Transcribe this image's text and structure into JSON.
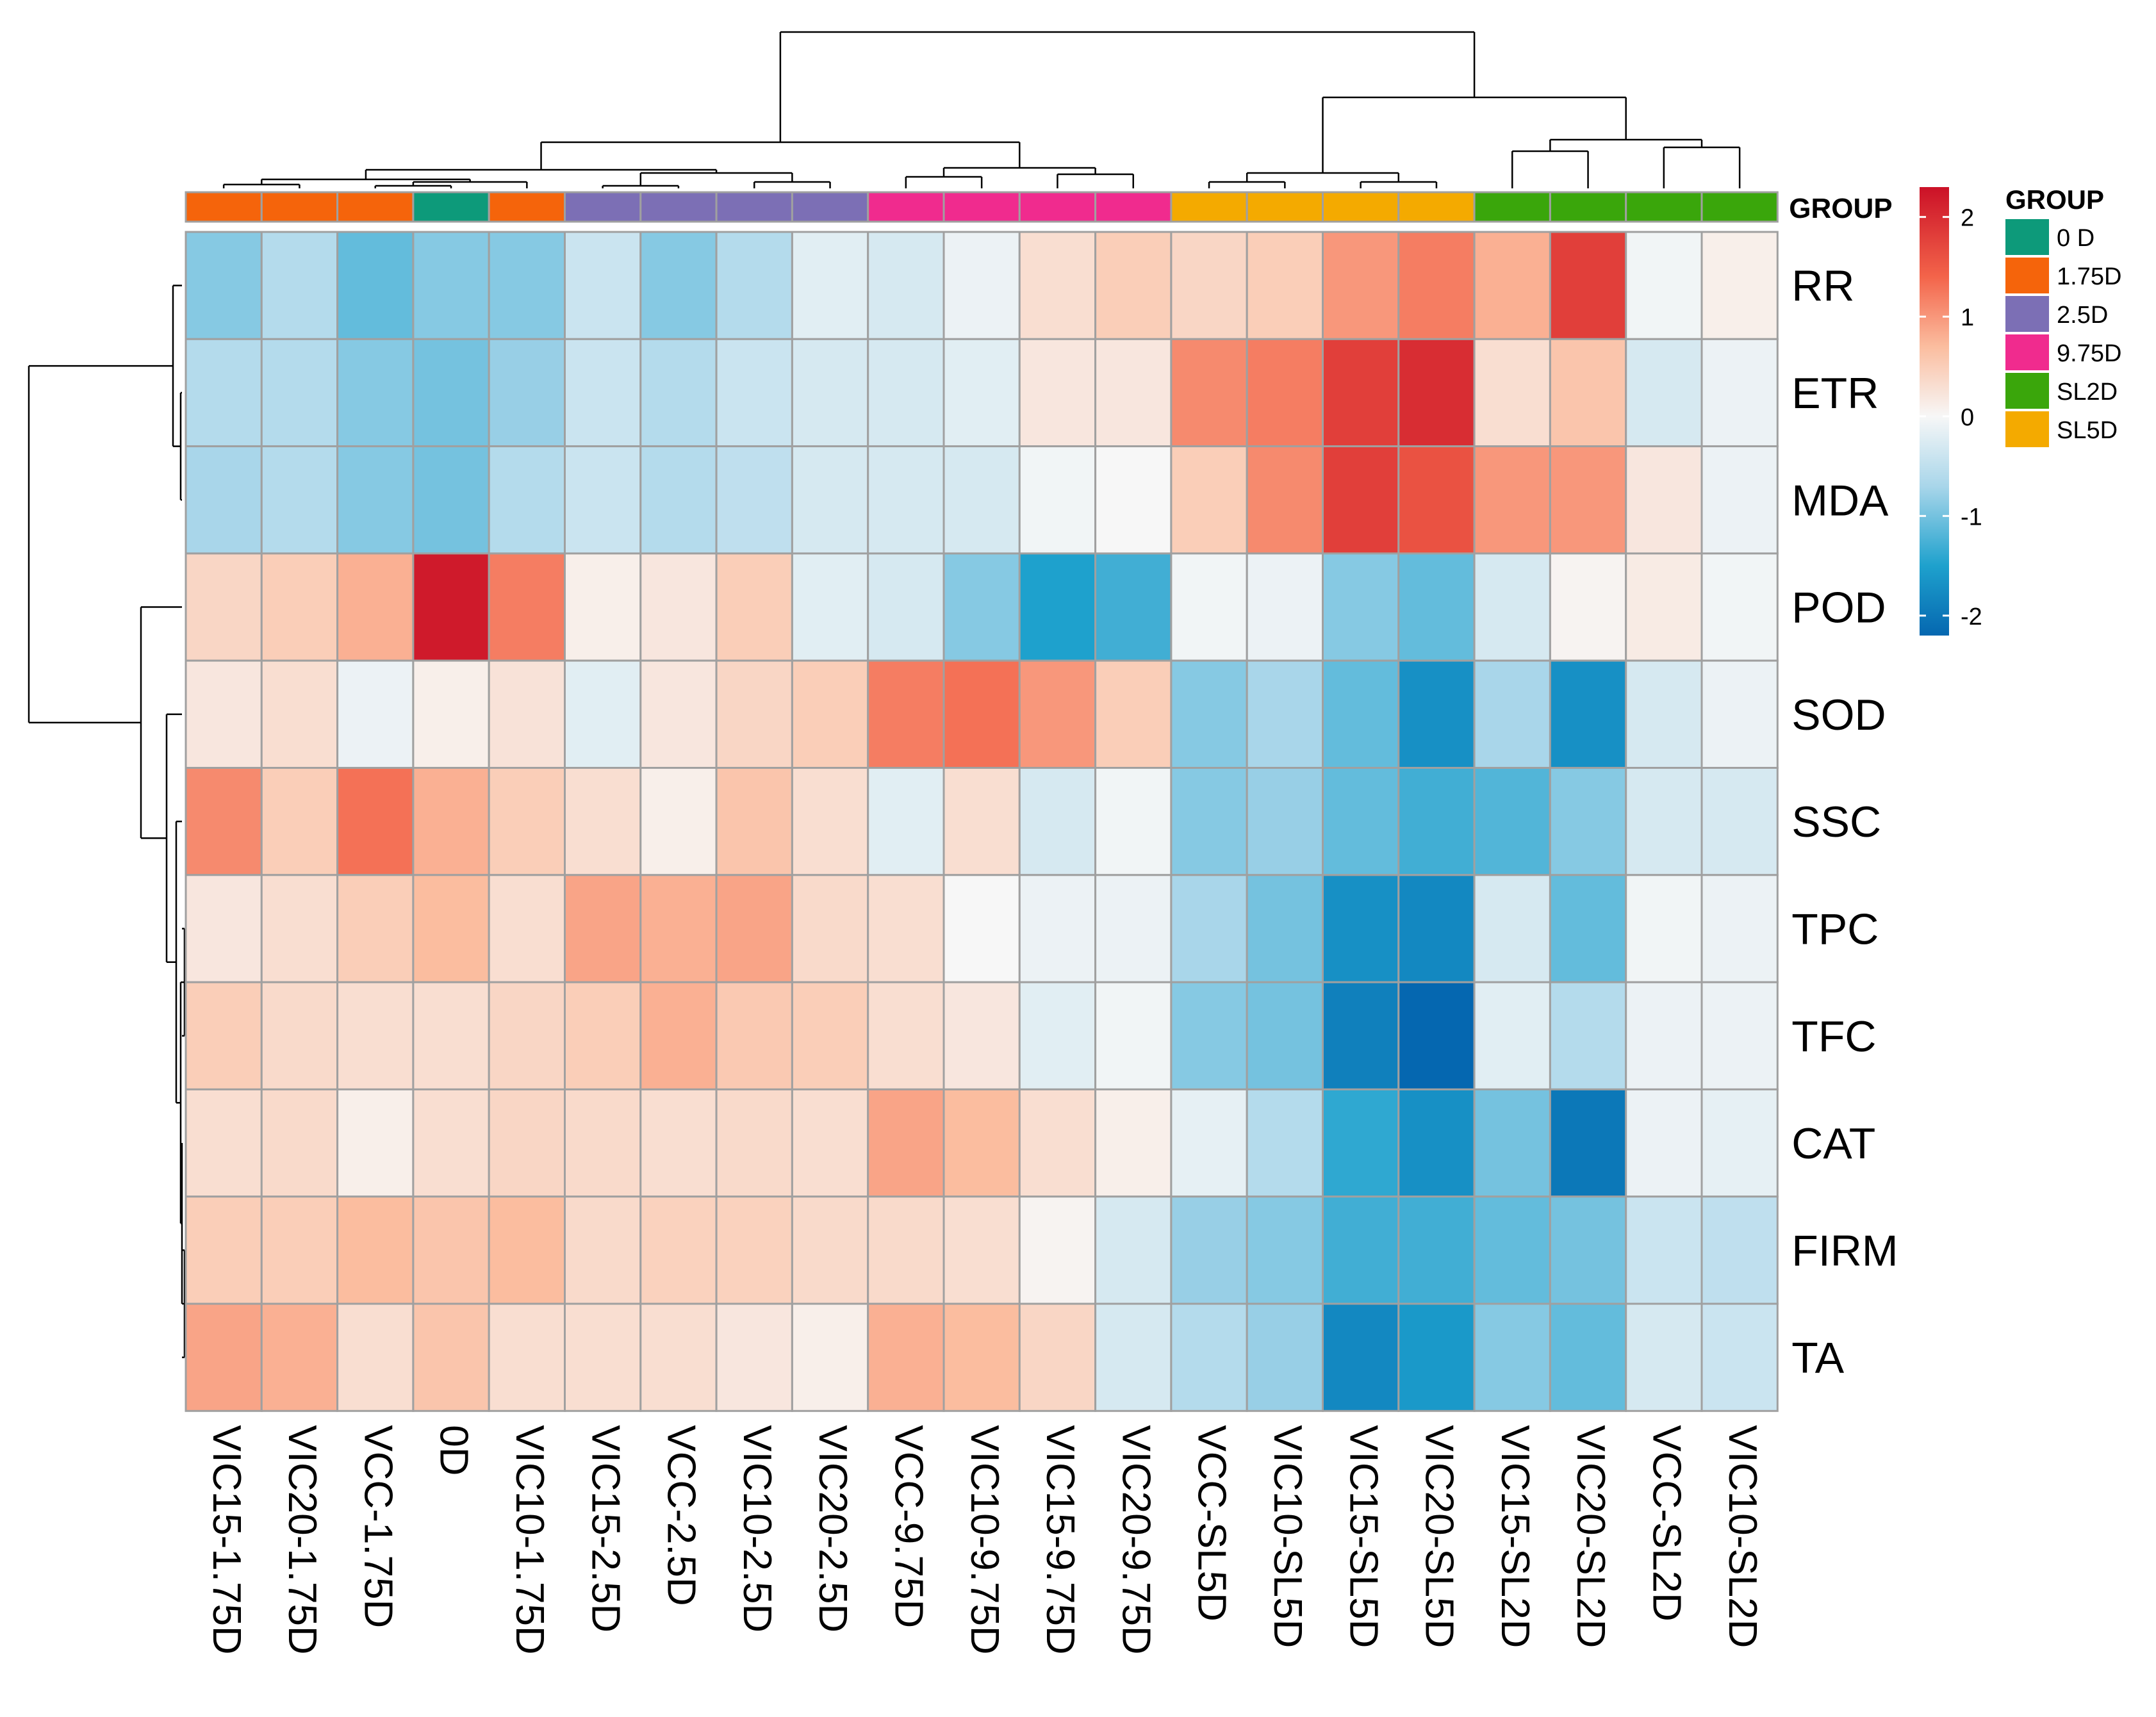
{
  "chart_data": {
    "type": "heatmap",
    "title": "",
    "columns": [
      "VIC15-1.75D",
      "VIC20-1.75D",
      "VCC-1.75D",
      "0D",
      "VIC10-1.75D",
      "VIC15-2.5D",
      "VCC-2.5D",
      "VIC10-2.5D",
      "VIC20-2.5D",
      "VCC-9.75D",
      "VIC10-9.75D",
      "VIC15-9.75D",
      "VIC20-9.75D",
      "VCC-SL5D",
      "VIC10-SL5D",
      "VIC15-SL5D",
      "VIC20-SL5D",
      "VIC15-SL2D",
      "VIC20-SL2D",
      "VCC-SL2D",
      "VIC10-SL2D"
    ],
    "rows": [
      "RR",
      "ETR",
      "MDA",
      "POD",
      "SOD",
      "SSC",
      "TPC",
      "TFC",
      "CAT",
      "FIRM",
      "TA"
    ],
    "values": [
      [
        -0.9,
        -0.6,
        -1.1,
        -0.9,
        -0.9,
        -0.4,
        -0.9,
        -0.6,
        -0.2,
        -0.3,
        -0.1,
        0.3,
        0.5,
        0.4,
        0.5,
        1.0,
        1.2,
        0.8,
        1.8,
        -0.05,
        0.1
      ],
      [
        -0.6,
        -0.6,
        -0.9,
        -1.0,
        -0.8,
        -0.4,
        -0.6,
        -0.4,
        -0.3,
        -0.3,
        -0.2,
        0.2,
        0.2,
        1.1,
        1.2,
        1.8,
        2.0,
        0.3,
        0.6,
        -0.3,
        -0.1
      ],
      [
        -0.7,
        -0.6,
        -0.9,
        -1.0,
        -0.6,
        -0.4,
        -0.6,
        -0.5,
        -0.3,
        -0.3,
        -0.3,
        -0.05,
        0.0,
        0.5,
        1.1,
        1.8,
        1.6,
        1.0,
        1.0,
        0.2,
        -0.1
      ],
      [
        0.4,
        0.5,
        0.8,
        2.2,
        1.2,
        0.1,
        0.2,
        0.5,
        -0.2,
        -0.3,
        -0.9,
        -1.5,
        -1.3,
        -0.05,
        -0.1,
        -0.9,
        -1.1,
        -0.3,
        0.05,
        0.15,
        -0.05
      ],
      [
        0.2,
        0.3,
        -0.1,
        0.1,
        0.25,
        -0.2,
        0.2,
        0.4,
        0.5,
        1.2,
        1.3,
        1.0,
        0.5,
        -0.9,
        -0.7,
        -1.1,
        -1.7,
        -0.7,
        -1.7,
        -0.3,
        -0.1
      ],
      [
        1.1,
        0.5,
        1.3,
        0.8,
        0.5,
        0.3,
        0.1,
        0.6,
        0.3,
        -0.2,
        0.3,
        -0.3,
        -0.05,
        -0.9,
        -0.8,
        -1.1,
        -1.3,
        -1.2,
        -0.9,
        -0.3,
        -0.3
      ],
      [
        0.2,
        0.3,
        0.5,
        0.7,
        0.3,
        0.9,
        0.8,
        0.9,
        0.35,
        0.3,
        0.0,
        -0.1,
        -0.1,
        -0.7,
        -1.0,
        -1.7,
        -1.8,
        -0.3,
        -1.1,
        -0.05,
        -0.1
      ],
      [
        0.5,
        0.35,
        0.3,
        0.3,
        0.4,
        0.5,
        0.8,
        0.55,
        0.5,
        0.3,
        0.2,
        -0.2,
        -0.05,
        -0.9,
        -1.0,
        -1.9,
        -2.2,
        -0.2,
        -0.6,
        -0.1,
        -0.1
      ],
      [
        0.3,
        0.35,
        0.1,
        0.3,
        0.4,
        0.35,
        0.3,
        0.35,
        0.3,
        0.9,
        0.7,
        0.3,
        0.1,
        -0.15,
        -0.6,
        -1.4,
        -1.7,
        -1.0,
        -2.0,
        -0.1,
        -0.15
      ],
      [
        0.5,
        0.5,
        0.7,
        0.6,
        0.7,
        0.35,
        0.45,
        0.45,
        0.35,
        0.35,
        0.3,
        0.05,
        -0.3,
        -0.8,
        -0.9,
        -1.3,
        -1.3,
        -1.1,
        -1.0,
        -0.4,
        -0.5
      ],
      [
        0.9,
        0.8,
        0.3,
        0.6,
        0.3,
        0.3,
        0.3,
        0.2,
        0.1,
        0.8,
        0.7,
        0.4,
        -0.3,
        -0.6,
        -0.8,
        -1.8,
        -1.6,
        -0.9,
        -1.1,
        -0.3,
        -0.4
      ]
    ],
    "column_groups": [
      "1.75D",
      "1.75D",
      "1.75D",
      "0 D",
      "1.75D",
      "2.5D",
      "2.5D",
      "2.5D",
      "2.5D",
      "9.75D",
      "9.75D",
      "9.75D",
      "9.75D",
      "SL5D",
      "SL5D",
      "SL5D",
      "SL5D",
      "SL2D",
      "SL2D",
      "SL2D",
      "SL2D"
    ],
    "annotation_title": "GROUP",
    "color_scale": {
      "min": -2.2,
      "max": 2.3,
      "stops": [
        {
          "value": -2.2,
          "color": "#0567b0"
        },
        {
          "value": -1.5,
          "color": "#1ea1cd"
        },
        {
          "value": -0.7,
          "color": "#a9d6ea"
        },
        {
          "value": 0,
          "color": "#f7f7f7"
        },
        {
          "value": 0.7,
          "color": "#fbbd9f"
        },
        {
          "value": 1.4,
          "color": "#f3644a"
        },
        {
          "value": 2.3,
          "color": "#cb1127"
        }
      ],
      "ticks": [
        2,
        1,
        0,
        -1,
        -2
      ]
    },
    "legend": {
      "title": "GROUP",
      "entries": [
        {
          "label": "0 D",
          "color": "#0d9a7a"
        },
        {
          "label": "1.75D",
          "color": "#f5640b"
        },
        {
          "label": "2.5D",
          "color": "#7c6fb5"
        },
        {
          "label": "9.75D",
          "color": "#f02b8e"
        },
        {
          "label": "SL2D",
          "color": "#3aa60b"
        },
        {
          "label": "SL5D",
          "color": "#f4aa00"
        }
      ]
    }
  }
}
